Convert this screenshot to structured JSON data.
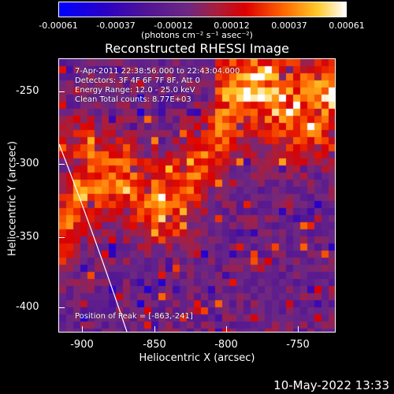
{
  "colorbar": {
    "ticks": [
      "-0.00061",
      "-0.00037",
      "-0.00012",
      "0.00012",
      "0.00037",
      "0.00061"
    ],
    "units": "(photons cm⁻² s⁻¹ asec⁻²)"
  },
  "title": "Reconstructed RHESSI Image",
  "info": {
    "time": "7-Apr-2011 22:38:56.000 to 22:43:04.000",
    "detectors": "Detectors: 3F 4F 6F 7F 8F, Att 0",
    "energy": "Energy Range: 12.0 - 25.0 keV",
    "clean": "Clean     Total counts: 8.77E+03",
    "peak": "Position of Peak = [-863,-241]"
  },
  "axes": {
    "xlabel": "Heliocentric X (arcsec)",
    "ylabel": "Heliocentric Y (arcsec)",
    "xticks": [
      "-900",
      "-850",
      "-800",
      "-750"
    ],
    "yticks": [
      "-250",
      "-300",
      "-350",
      "-400"
    ]
  },
  "footer_date": "10-May-2022 13:33"
}
